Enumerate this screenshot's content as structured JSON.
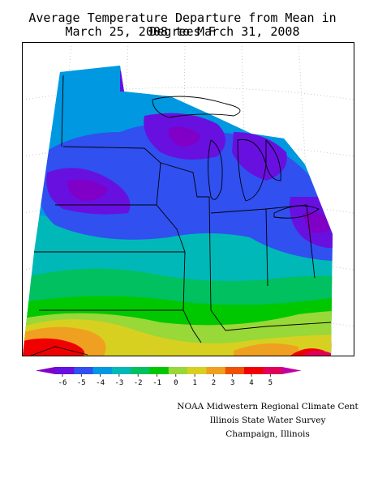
{
  "title": {
    "line1": "Average Temperature Departure from Mean in Degrees F",
    "line2": "March 25, 2008 to March 31, 2008"
  },
  "legend": {
    "ticks": [
      "-6",
      "-5",
      "-4",
      "-3",
      "-2",
      "-1",
      "0",
      "1",
      "2",
      "3",
      "4",
      "5"
    ],
    "colors": [
      "#8000c8",
      "#6810e0",
      "#3050f0",
      "#0098e0",
      "#00b8b8",
      "#00c060",
      "#00c800",
      "#98d838",
      "#d8d020",
      "#f0a020",
      "#f05000",
      "#f00000",
      "#e0005a",
      "#c000a0"
    ]
  },
  "map": {
    "region": "Midwestern United States",
    "palette": {
      "purple": "#8000c8",
      "violet": "#6810e0",
      "blue": "#3050f0",
      "sky": "#0098e0",
      "teal": "#00b8b8",
      "green": "#00c060",
      "bright_green": "#00c800",
      "lime": "#98d838",
      "yellow": "#d8d020",
      "orange": "#f0a020",
      "red": "#f00000",
      "magenta": "#e0005a"
    }
  },
  "credits": {
    "line1": "NOAA Midwestern Regional Climate Cent",
    "line2": "Illinois State Water Survey",
    "line3": "Champaign, Illinois"
  }
}
